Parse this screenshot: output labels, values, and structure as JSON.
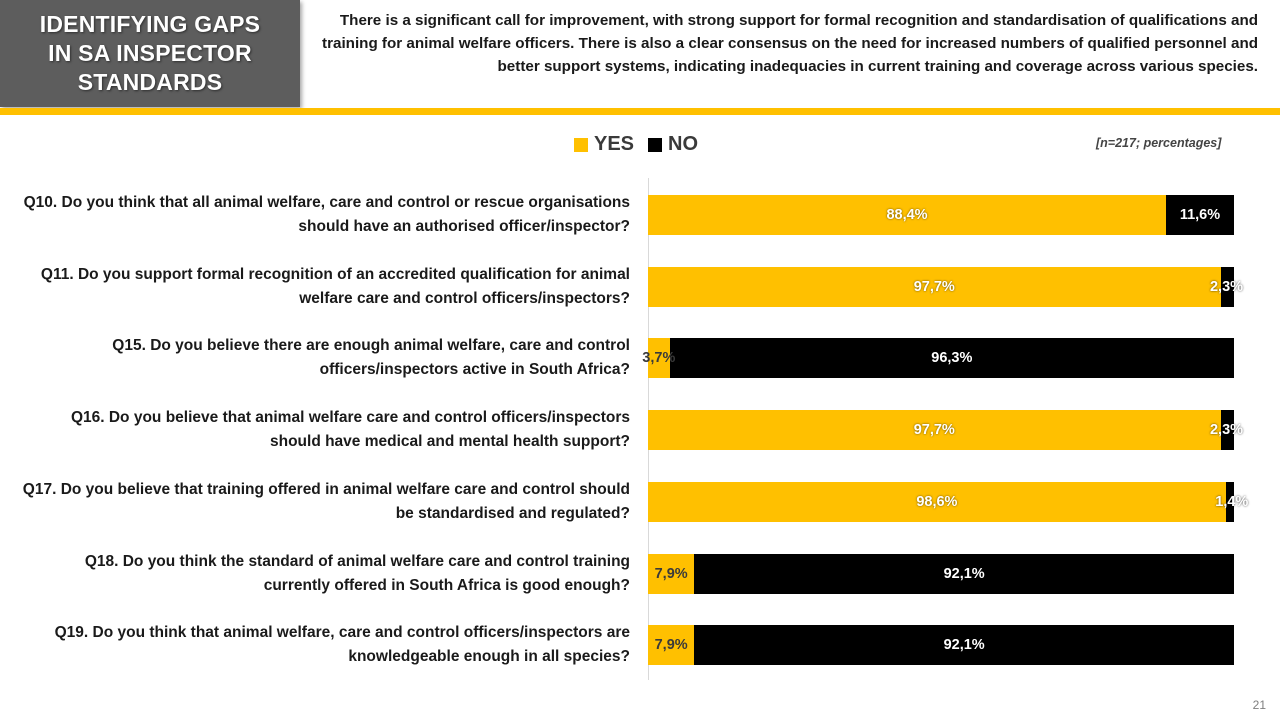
{
  "header": {
    "title_lines": [
      "IDENTIFYING GAPS",
      "IN SA INSPECTOR",
      "STANDARDS"
    ],
    "summary": "There is a significant call for improvement, with strong support for formal recognition and standardisation of qualifications and training for animal welfare officers. There is also a clear consensus on the need for increased numbers of qualified personnel and better support systems, indicating inadequacies in current training and coverage across various species."
  },
  "note": "[n=217; percentages]",
  "page_number": "21",
  "colors": {
    "yes": "#ffc000",
    "no": "#000000",
    "header_bg": "#5d5d5d",
    "rule": "#ffc000"
  },
  "chart_data": {
    "type": "bar",
    "orientation": "horizontal",
    "stacked": true,
    "legend_position": "top",
    "xlim": [
      0,
      100
    ],
    "categories": [
      "Q10. Do you think that all animal welfare, care and control or rescue organisations should have an authorised officer/inspector?",
      "Q11. Do you support formal recognition of an accredited qualification for animal welfare care and control officers/inspectors?",
      "Q15. Do you believe there are enough animal welfare, care and control officers/inspectors active in South Africa?",
      "Q16. Do you believe that animal welfare care and control officers/inspectors should have medical and mental health support?",
      "Q17. Do you believe that training offered in animal welfare care and control should be standardised and regulated?",
      "Q18. Do you think the standard of animal welfare care and control training currently offered in South Africa is good enough?",
      "Q19. Do you think that animal welfare, care and control officers/inspectors are knowledgeable enough in all species?"
    ],
    "series": [
      {
        "name": "YES",
        "values": [
          88.4,
          97.7,
          3.7,
          97.7,
          98.6,
          7.9,
          7.9
        ],
        "labels": [
          "88,4%",
          "97,7%",
          "3,7%",
          "97,7%",
          "98,6%",
          "7,9%",
          "7,9%"
        ]
      },
      {
        "name": "NO",
        "values": [
          11.6,
          2.3,
          96.3,
          2.3,
          1.4,
          92.1,
          92.1
        ],
        "labels": [
          "11,6%",
          "2,3%",
          "96,3%",
          "2,3%",
          "1,4%",
          "92,1%",
          "92,1%"
        ]
      }
    ]
  }
}
